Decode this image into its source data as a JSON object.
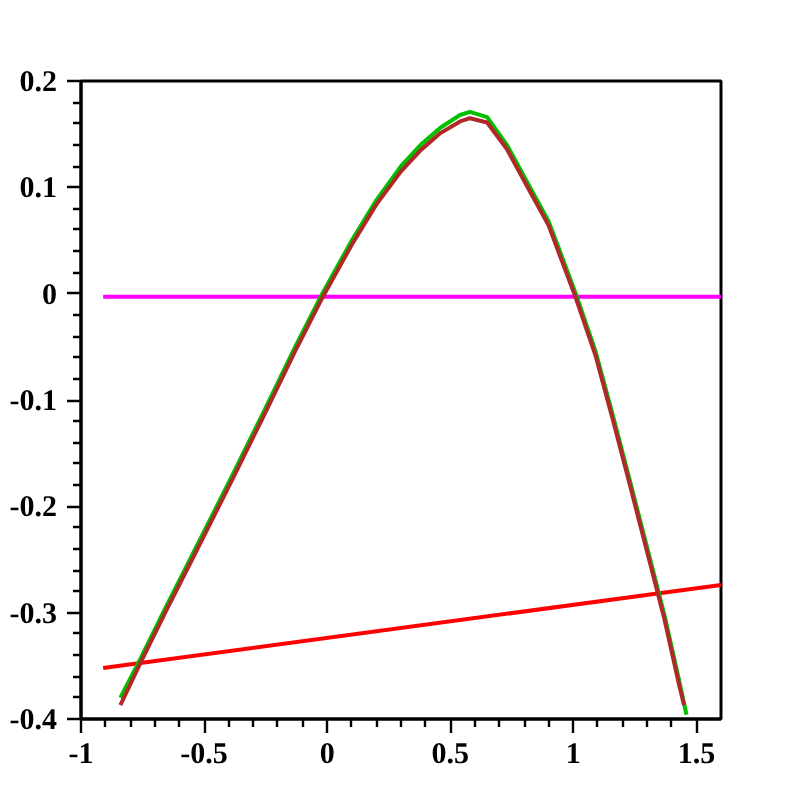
{
  "chart_data": {
    "type": "line",
    "xlim": [
      -1,
      1.6
    ],
    "ylim": [
      -0.4,
      0.2
    ],
    "xticks": [
      -1,
      {
        "value": -0.9,
        "label": null
      },
      {
        "value": -0.8,
        "label": null
      },
      {
        "value": -0.7,
        "label": null
      },
      {
        "value": -0.6,
        "label": null
      },
      -0.5,
      {
        "value": -0.4,
        "label": null
      },
      {
        "value": -0.3,
        "label": null
      },
      {
        "value": -0.2,
        "label": null
      },
      {
        "value": -0.1,
        "label": null
      },
      0,
      {
        "value": 0.1,
        "label": null
      },
      {
        "value": 0.2,
        "label": null
      },
      {
        "value": 0.3,
        "label": null
      },
      {
        "value": 0.4,
        "label": null
      },
      0.5,
      {
        "value": 0.6,
        "label": null
      },
      {
        "value": 0.7,
        "label": null
      },
      {
        "value": 0.8,
        "label": null
      },
      {
        "value": 0.9,
        "label": null
      },
      1,
      {
        "value": 1.1,
        "label": null
      },
      {
        "value": 1.2,
        "label": null
      },
      {
        "value": 1.3,
        "label": null
      },
      {
        "value": 1.4,
        "label": null
      },
      1.5
    ],
    "yticks": [
      -0.4,
      {
        "value": -0.38,
        "label": null
      },
      {
        "value": -0.36,
        "label": null
      },
      {
        "value": -0.34,
        "label": null
      },
      {
        "value": -0.32,
        "label": null
      },
      -0.3,
      {
        "value": -0.28,
        "label": null
      },
      {
        "value": -0.26,
        "label": null
      },
      {
        "value": -0.24,
        "label": null
      },
      {
        "value": -0.22,
        "label": null
      },
      -0.2,
      {
        "value": -0.18,
        "label": null
      },
      {
        "value": -0.16,
        "label": null
      },
      {
        "value": -0.14,
        "label": null
      },
      {
        "value": -0.12,
        "label": null
      },
      -0.1,
      {
        "value": -0.08,
        "label": null
      },
      {
        "value": -0.06,
        "label": null
      },
      {
        "value": -0.04,
        "label": null
      },
      {
        "value": -0.02,
        "label": null
      },
      0,
      {
        "value": 0.02,
        "label": null
      },
      {
        "value": 0.04,
        "label": null
      },
      {
        "value": 0.06,
        "label": null
      },
      {
        "value": 0.08,
        "label": null
      },
      0.1,
      {
        "value": 0.12,
        "label": null
      },
      {
        "value": 0.14,
        "label": null
      },
      {
        "value": 0.16,
        "label": null
      },
      {
        "value": 0.18,
        "label": null
      },
      0.2
    ],
    "grid": false,
    "marker": "none",
    "line_style": "solid",
    "series": [
      {
        "color": "#ff00ff",
        "x": [
          -0.91,
          1.6
        ],
        "values": [
          -0.003,
          -0.003
        ]
      },
      {
        "color": "#ff0000",
        "x": [
          -0.91,
          1.6
        ],
        "values": [
          -0.352,
          -0.274
        ]
      },
      {
        "color": "#00c000",
        "x": [
          -0.84,
          -0.76,
          -0.66,
          -0.54,
          -0.39,
          -0.26,
          -0.13,
          -0.02,
          0.1,
          0.2,
          0.3,
          0.38,
          0.46,
          0.54,
          0.58,
          0.65,
          0.73,
          0.81,
          0.9,
          0.95,
          1.01,
          1.09,
          1.16,
          1.23,
          1.3,
          1.37,
          1.43,
          1.46
        ],
        "values": [
          -0.38,
          -0.344,
          -0.297,
          -0.242,
          -0.173,
          -0.112,
          -0.05,
          0.0,
          0.05,
          0.088,
          0.12,
          0.14,
          0.156,
          0.168,
          0.171,
          0.166,
          0.14,
          0.106,
          0.068,
          0.037,
          0.0,
          -0.054,
          -0.114,
          -0.176,
          -0.239,
          -0.302,
          -0.364,
          -0.396
        ]
      },
      {
        "color": "#b02828",
        "x": [
          -0.84,
          -0.76,
          -0.66,
          -0.54,
          -0.39,
          -0.26,
          -0.13,
          -0.02,
          0.1,
          0.2,
          0.3,
          0.38,
          0.46,
          0.54,
          0.58,
          0.65,
          0.73,
          0.81,
          0.9,
          0.95,
          1.01,
          1.09,
          1.16,
          1.23,
          1.3,
          1.37,
          1.43,
          1.45
        ],
        "values": [
          -0.387,
          -0.348,
          -0.301,
          -0.246,
          -0.177,
          -0.116,
          -0.054,
          -0.004,
          0.046,
          0.084,
          0.115,
          0.135,
          0.151,
          0.162,
          0.165,
          0.161,
          0.136,
          0.102,
          0.064,
          0.033,
          -0.004,
          -0.058,
          -0.118,
          -0.18,
          -0.243,
          -0.306,
          -0.368,
          -0.387
        ]
      }
    ]
  }
}
